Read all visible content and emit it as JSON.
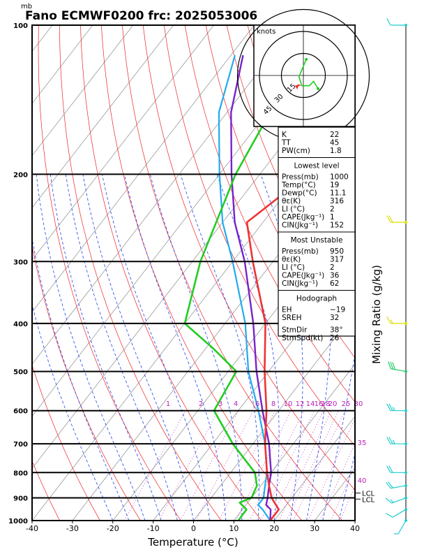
{
  "title": "Fano ECMWF0200  frc: 2025053006",
  "unit_mb": "mb",
  "colors": {
    "temperature": "#ee3333",
    "dewpoint": "#22cc22",
    "parcel": "#7722cc",
    "parcel_env": "#22aaee",
    "dry_adiabat": "#ee2222",
    "moist_adiabat": "#2244ee",
    "mixing_ratio": "#bb22bb",
    "isotherm": "#999999",
    "wind_barb": "#22cccc",
    "wind_barb_mid": "#22cc66",
    "wind_barb_high": "#dddd00"
  },
  "chart_data": {
    "type": "line",
    "title": "Fano ECMWF0200  frc: 2025053006",
    "xlabel": "Temperature (°C)",
    "ylabel": "mb",
    "xlim": [
      -40,
      40
    ],
    "pressure_range": [
      1000,
      100
    ],
    "x_ticks": [
      "-40",
      "-30",
      "-20",
      "-10",
      "0",
      "10",
      "20",
      "30",
      "40"
    ],
    "pressure_ticks": [
      "100",
      "200",
      "300",
      "400",
      "500",
      "600",
      "700",
      "800",
      "900",
      "1000"
    ],
    "mixing_ratio_label": "Mixing Ratio (g/kg)",
    "mixing_ratio_values": [
      "1",
      "2",
      "3",
      "4",
      "6",
      "8",
      "10",
      "12",
      "14",
      "16",
      "18",
      "20",
      "25",
      "30",
      "35",
      "40"
    ],
    "lcl_labels": [
      "LCL",
      "LCL"
    ],
    "series": [
      {
        "name": "Temperature",
        "points": [
          [
            1000,
            19
          ],
          [
            950,
            19
          ],
          [
            900,
            15
          ],
          [
            850,
            12
          ],
          [
            800,
            9
          ],
          [
            700,
            3
          ],
          [
            600,
            -3
          ],
          [
            500,
            -11
          ],
          [
            400,
            -20
          ],
          [
            300,
            -35
          ],
          [
            250,
            -44
          ],
          [
            200,
            -38
          ],
          [
            150,
            -33
          ],
          [
            100,
            -23
          ]
        ]
      },
      {
        "name": "Dewpoint",
        "points": [
          [
            1000,
            11.1
          ],
          [
            950,
            11
          ],
          [
            920,
            8
          ],
          [
            900,
            10
          ],
          [
            850,
            9
          ],
          [
            800,
            6
          ],
          [
            700,
            -5
          ],
          [
            600,
            -16
          ],
          [
            500,
            -18
          ],
          [
            450,
            -28
          ],
          [
            400,
            -40
          ],
          [
            300,
            -48
          ],
          [
            200,
            -56
          ],
          [
            100,
            -64
          ]
        ]
      },
      {
        "name": "Parcel",
        "points": [
          [
            1000,
            19
          ],
          [
            950,
            17
          ],
          [
            930,
            15
          ],
          [
            900,
            14
          ],
          [
            850,
            12
          ],
          [
            800,
            10
          ],
          [
            700,
            4
          ],
          [
            600,
            -4
          ],
          [
            500,
            -13
          ],
          [
            400,
            -23
          ],
          [
            300,
            -37
          ],
          [
            250,
            -47
          ],
          [
            200,
            -57
          ],
          [
            150,
            -69
          ],
          [
            115,
            -77
          ]
        ]
      },
      {
        "name": "Parcel (environment)",
        "points": [
          [
            1000,
            19
          ],
          [
            950,
            15
          ],
          [
            930,
            13
          ],
          [
            900,
            13
          ],
          [
            850,
            11
          ],
          [
            800,
            9
          ],
          [
            700,
            3
          ],
          [
            600,
            -5
          ],
          [
            500,
            -15
          ],
          [
            400,
            -25
          ],
          [
            300,
            -40
          ],
          [
            250,
            -50
          ],
          [
            200,
            -60
          ],
          [
            150,
            -72
          ],
          [
            115,
            -79
          ]
        ]
      }
    ],
    "winds": [
      {
        "p": 100,
        "dir": 270,
        "spd": 10
      },
      {
        "p": 250,
        "dir": 270,
        "spd": 20
      },
      {
        "p": 400,
        "dir": 270,
        "spd": 15
      },
      {
        "p": 500,
        "dir": 280,
        "spd": 30
      },
      {
        "p": 600,
        "dir": 270,
        "spd": 25
      },
      {
        "p": 700,
        "dir": 270,
        "spd": 25
      },
      {
        "p": 800,
        "dir": 270,
        "spd": 20
      },
      {
        "p": 850,
        "dir": 260,
        "spd": 20
      },
      {
        "p": 900,
        "dir": 250,
        "spd": 15
      },
      {
        "p": 950,
        "dir": 240,
        "spd": 10
      },
      {
        "p": 1000,
        "dir": 210,
        "spd": 5
      }
    ],
    "hodograph": {
      "label": "knots",
      "ring_labels": [
        "15",
        "30",
        "45"
      ],
      "trace": [
        [
          2,
          11
        ],
        [
          -1,
          4
        ],
        [
          -3,
          -1
        ],
        [
          -1,
          -7
        ],
        [
          4,
          -7
        ],
        [
          7,
          -4
        ],
        [
          10,
          -9
        ]
      ],
      "storm_motion": {
        "dir": 38,
        "spd": 26
      }
    }
  },
  "indices": [
    {
      "label": "K",
      "value": "22"
    },
    {
      "label": "TT",
      "value": "45"
    },
    {
      "label": "PW(cm)",
      "value": "1.8"
    }
  ],
  "lowest_level": {
    "title": "Lowest level",
    "rows": [
      {
        "label": "Press(mb)",
        "value": "1000"
      },
      {
        "label": "Temp(°C)",
        "value": "19"
      },
      {
        "label": "Dewp(°C)",
        "value": "11.1"
      },
      {
        "label": "θε(K)",
        "value": "316"
      },
      {
        "label": "LI (°C)",
        "value": "2"
      },
      {
        "label": "CAPE(Jkg⁻¹)",
        "value": "1"
      },
      {
        "label": "CIN(Jkg⁻¹)",
        "value": "152"
      }
    ]
  },
  "most_unstable": {
    "title": "Most Unstable",
    "rows": [
      {
        "label": "Press(mb)",
        "value": "950"
      },
      {
        "label": "θε(K)",
        "value": "317"
      },
      {
        "label": "LI (°C)",
        "value": "2"
      },
      {
        "label": "CAPE(Jkg⁻¹)",
        "value": "36"
      },
      {
        "label": "CIN(Jkg⁻¹)",
        "value": "62"
      }
    ]
  },
  "hodograph_table": {
    "title": "Hodograph",
    "rows": [
      {
        "label": "EH",
        "value": "−19"
      },
      {
        "label": "SREH",
        "value": "32"
      },
      {
        "label": "StmDir",
        "value": "38°"
      },
      {
        "label": "StmSpd(kt)",
        "value": "26"
      }
    ]
  }
}
